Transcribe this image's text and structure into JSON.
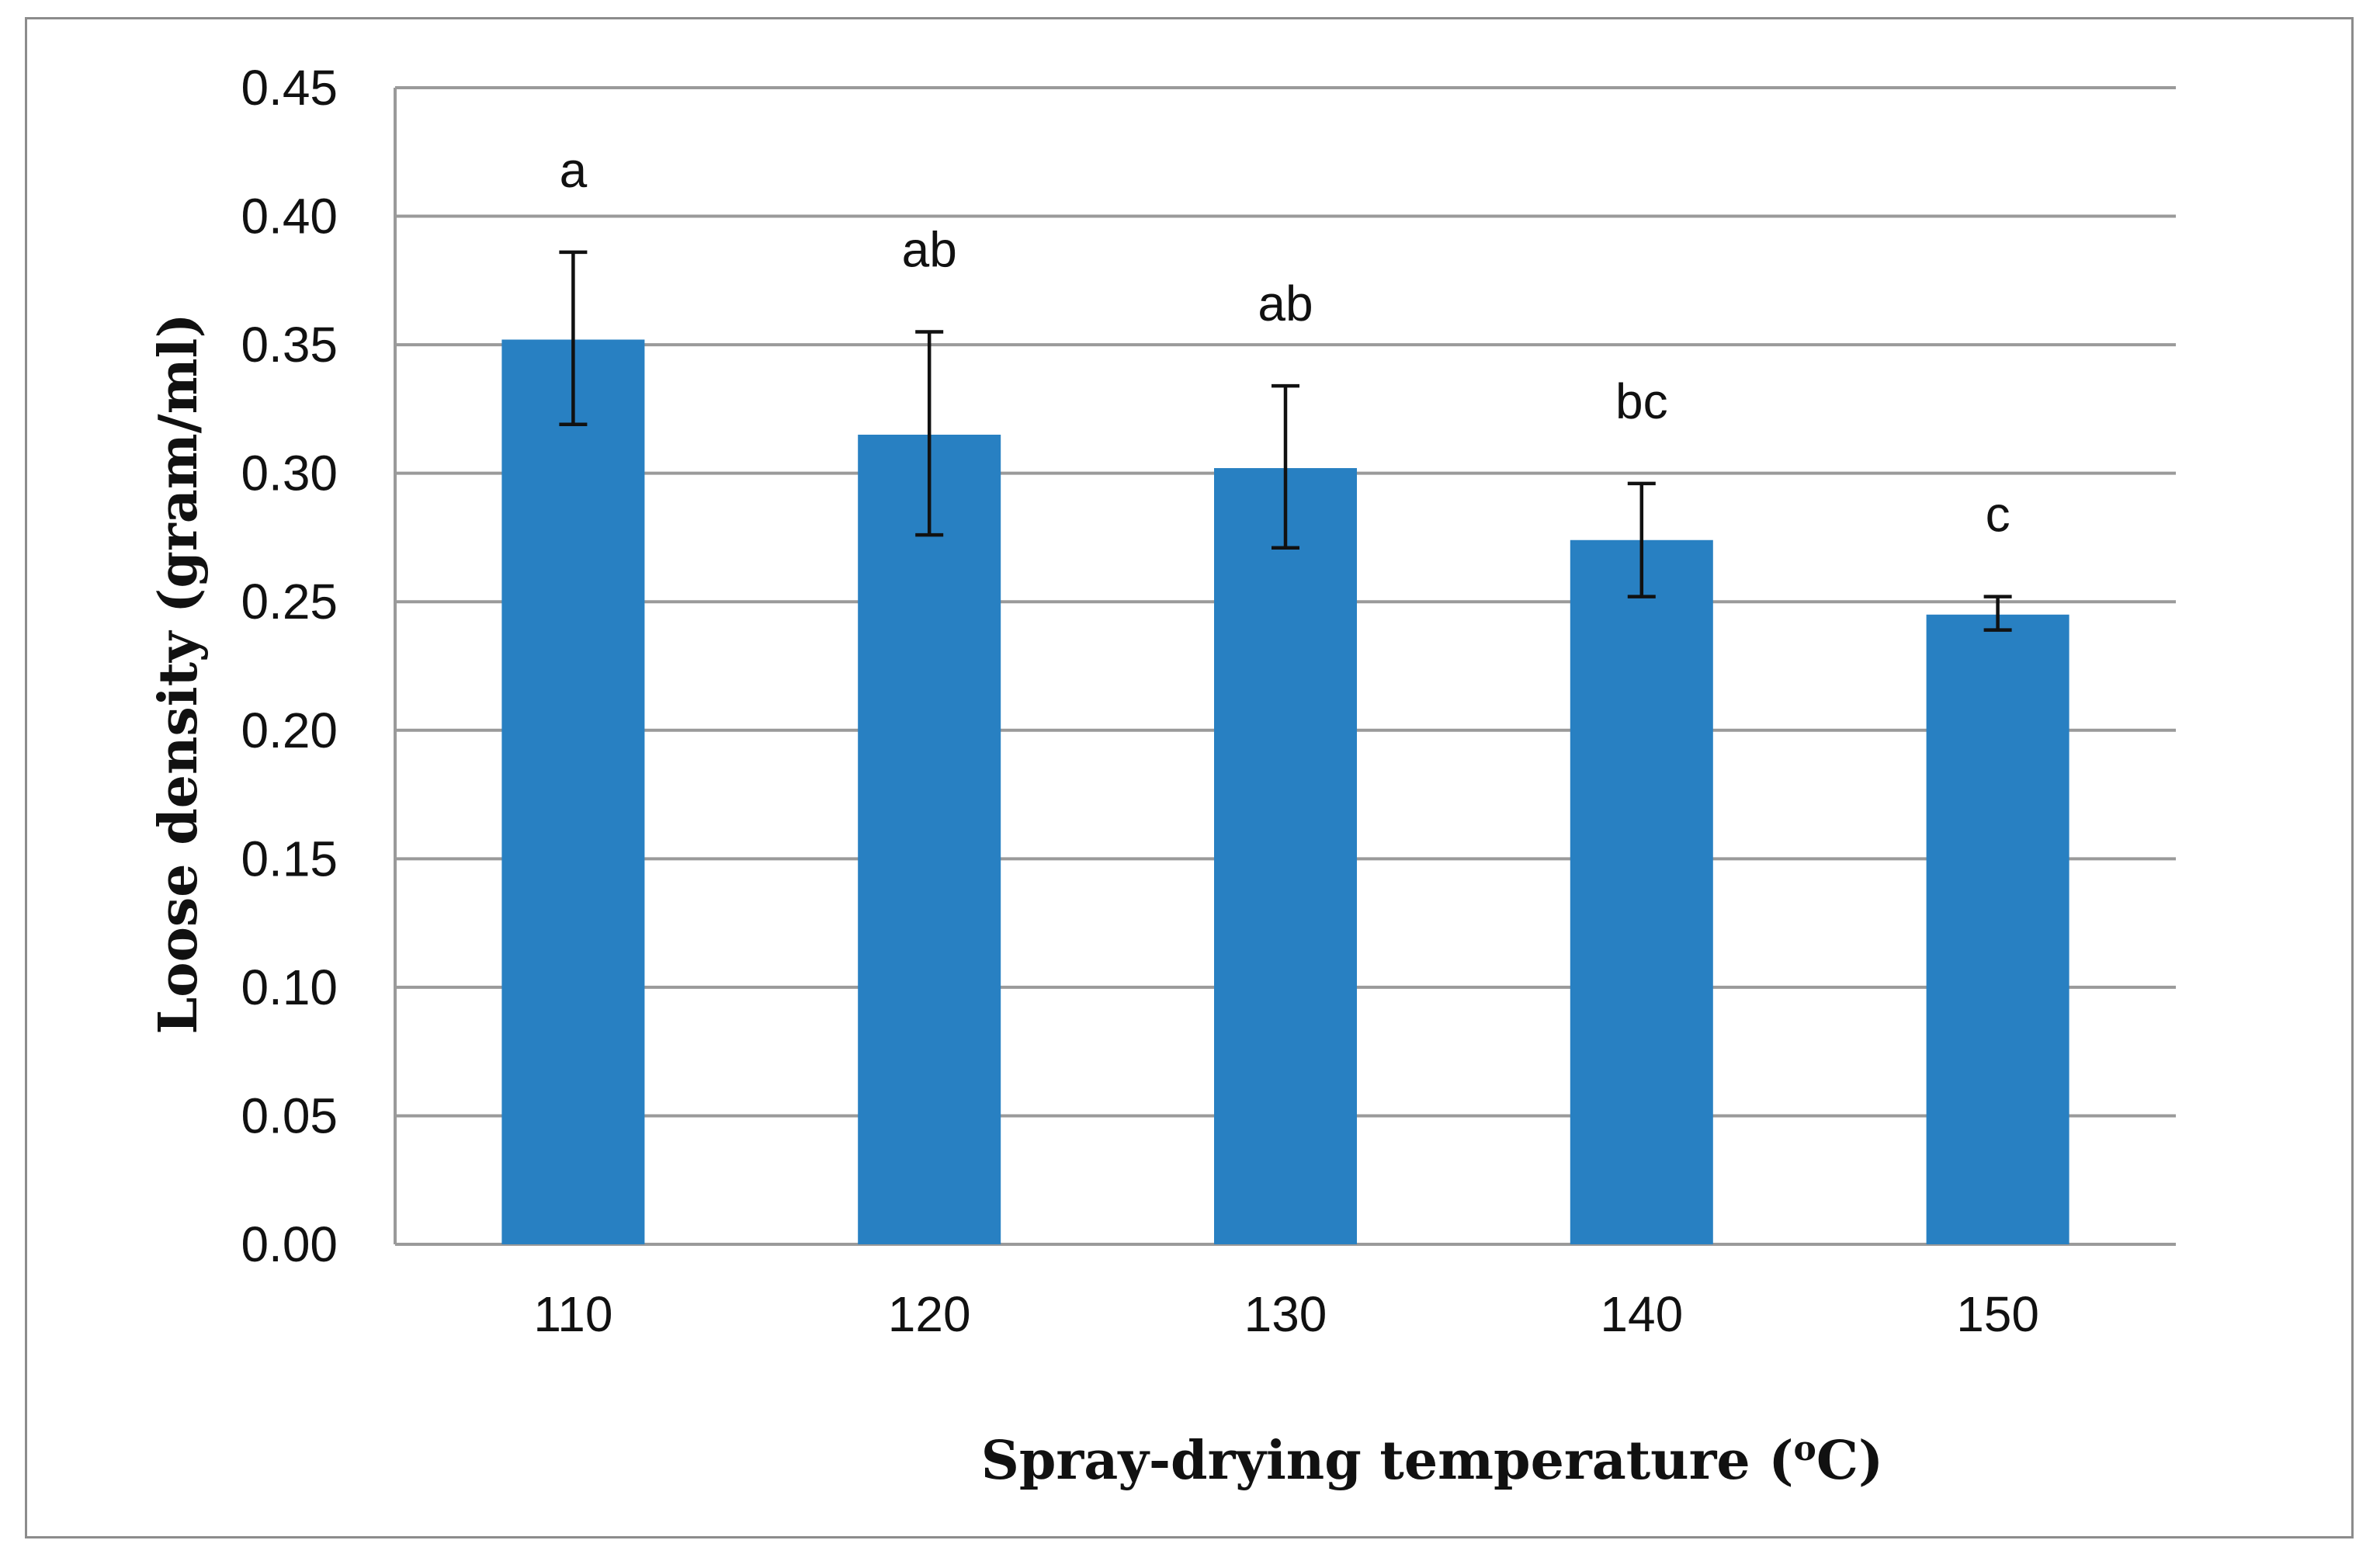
{
  "chart_data": {
    "type": "bar",
    "title": "",
    "xlabel": "Spray-drying temperature (",
    "xlabel_superscript": "o",
    "xlabel_suffix": "C)",
    "ylabel": "Loose density (gram/ml)",
    "ylim": [
      0,
      0.45
    ],
    "ytick_step": 0.05,
    "ytick_labels": [
      "0.00",
      "0.05",
      "0.10",
      "0.15",
      "0.20",
      "0.25",
      "0.30",
      "0.35",
      "0.40",
      "0.45"
    ],
    "grid": true,
    "categories": [
      "110",
      "120",
      "130",
      "140",
      "150"
    ],
    "values": [
      0.352,
      0.315,
      0.302,
      0.274,
      0.245
    ],
    "error_low": [
      0.319,
      0.276,
      0.271,
      0.252,
      0.239
    ],
    "error_high": [
      0.386,
      0.355,
      0.334,
      0.296,
      0.252
    ],
    "significance_letters": [
      "a",
      "ab",
      "ab",
      "bc",
      "c"
    ],
    "bar_color": "#2880c2"
  }
}
